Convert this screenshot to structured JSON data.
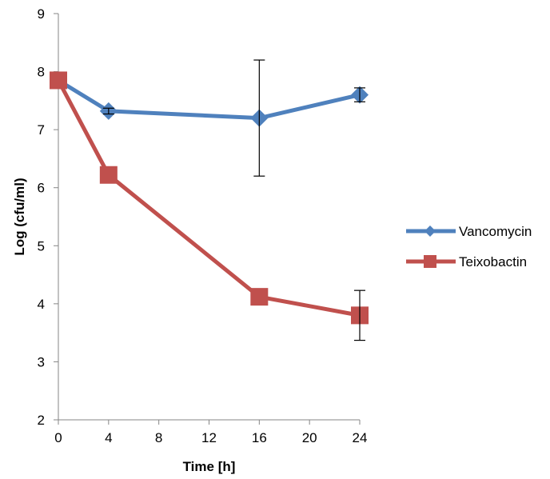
{
  "chart_data": {
    "type": "line",
    "title": "",
    "xlabel": "Time [h]",
    "ylabel": "Log (cfu/ml)",
    "xlim": [
      0,
      24
    ],
    "ylim": [
      2,
      9
    ],
    "xticks": [
      0,
      4,
      8,
      12,
      16,
      20,
      24
    ],
    "yticks": [
      2,
      3,
      4,
      5,
      6,
      7,
      8,
      9
    ],
    "grid": false,
    "legend_position": "right",
    "series": [
      {
        "name": "Vancomycin",
        "color": "#4f81bd",
        "marker": "diamond",
        "x": [
          0,
          4,
          16,
          24
        ],
        "y": [
          7.85,
          7.32,
          7.2,
          7.6
        ],
        "error": [
          0,
          0.05,
          1.0,
          0.12
        ]
      },
      {
        "name": "Teixobactin",
        "color": "#c0504d",
        "marker": "square",
        "x": [
          0,
          4,
          16,
          24
        ],
        "y": [
          7.85,
          6.22,
          4.12,
          3.8
        ],
        "error": [
          0,
          0,
          0,
          0.43
        ]
      }
    ]
  }
}
